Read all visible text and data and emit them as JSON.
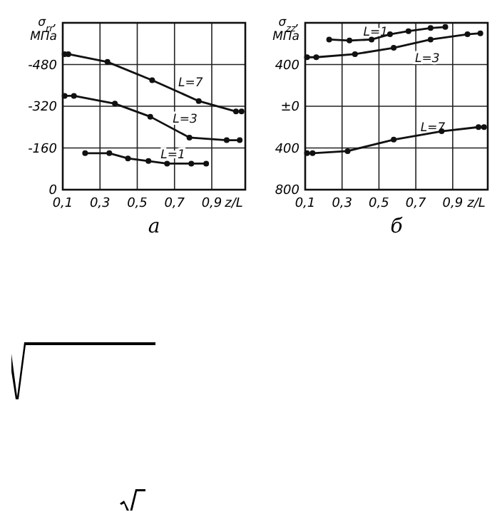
{
  "chart_data": [
    {
      "type": "line",
      "ylabel": "σ$_{rr}$, МПа",
      "xlabel": "z/L",
      "annotations": [
        "а"
      ],
      "xlim": [
        0.1,
        1.08
      ],
      "xticks": [
        {
          "value": 0.1,
          "label": "0,1"
        },
        {
          "value": 0.3,
          "label": "0,3"
        },
        {
          "value": 0.5,
          "label": "0,5"
        },
        {
          "value": 0.7,
          "label": "0,7"
        },
        {
          "value": 0.9,
          "label": "0,9"
        }
      ],
      "ylim": [
        0,
        -640
      ],
      "yticks": [
        0,
        -160,
        -320,
        -480
      ],
      "grid": true,
      "marker": "circle",
      "line_style": "solid",
      "series": [
        {
          "name": "L=7",
          "color": "#111111",
          "x": [
            0.11,
            0.13,
            0.34,
            0.58,
            0.83,
            1.03,
            1.06
          ],
          "values": [
            -520,
            -520,
            -490,
            -420,
            -340,
            -300,
            -300
          ]
        },
        {
          "name": "L=3",
          "color": "#111111",
          "x": [
            0.11,
            0.16,
            0.38,
            0.57,
            0.78,
            0.98,
            1.05
          ],
          "values": [
            -360,
            -360,
            -330,
            -280,
            -200,
            -190,
            -190
          ]
        },
        {
          "name": "L=1",
          "color": "#111111",
          "x": [
            0.22,
            0.35,
            0.45,
            0.56,
            0.66,
            0.79,
            0.87
          ],
          "values": [
            -140,
            -140,
            -120,
            -110,
            -100,
            -100,
            -100
          ]
        }
      ]
    },
    {
      "type": "line",
      "ylabel": "σ$_{zz}$, МПа",
      "xlabel": "z/L",
      "annotations": [
        "б"
      ],
      "xlim": [
        0.1,
        1.09
      ],
      "xticks": [
        {
          "value": 0.1,
          "label": "0,1"
        },
        {
          "value": 0.3,
          "label": "0,3"
        },
        {
          "value": 0.5,
          "label": "0,5"
        },
        {
          "value": 0.7,
          "label": "0,7"
        },
        {
          "value": 0.9,
          "label": "0,9"
        }
      ],
      "ylim": [
        -800,
        800
      ],
      "yticks": [
        {
          "value": -800,
          "label": "800"
        },
        {
          "value": -400,
          "label": "400"
        },
        {
          "value": 0,
          "label": "±0"
        },
        400
      ],
      "grid": true,
      "marker": "circle",
      "line_style": "solid",
      "series": [
        {
          "name": "L=1",
          "color": "#111111",
          "x": [
            0.23,
            0.34,
            0.46,
            0.56,
            0.66,
            0.78,
            0.86
          ],
          "values": [
            640,
            630,
            640,
            690,
            720,
            750,
            760
          ]
        },
        {
          "name": "L=3",
          "color": "#111111",
          "x": [
            0.11,
            0.16,
            0.37,
            0.58,
            0.78,
            0.98,
            1.05
          ],
          "values": [
            470,
            470,
            500,
            560,
            640,
            690,
            700
          ]
        },
        {
          "name": "L=7",
          "color": "#111111",
          "x": [
            0.11,
            0.14,
            0.33,
            0.58,
            0.84,
            1.04,
            1.07
          ],
          "values": [
            -450,
            -450,
            -430,
            -320,
            -240,
            -200,
            -200
          ]
        }
      ]
    }
  ]
}
